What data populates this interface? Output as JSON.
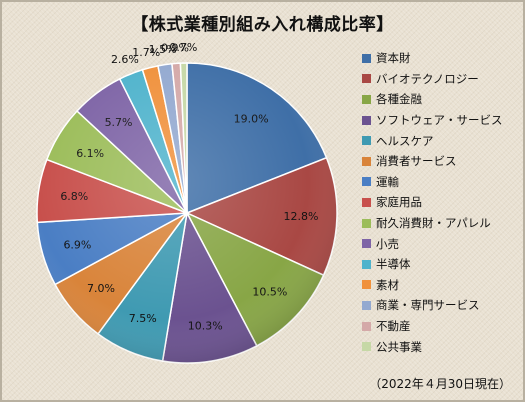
{
  "chart_data": {
    "type": "pie",
    "title": "【株式業種別組み入れ構成比率】",
    "categories": [
      "資本財",
      "バイオテクノロジー",
      "各種金融",
      "ソフトウェア・サービス",
      "ヘルスケア",
      "消費者サービス",
      "運輸",
      "家庭用品",
      "耐久消費財・アパレル",
      "小売",
      "半導体",
      "素材",
      "商業・専門サービス",
      "不動産",
      "公共事業"
    ],
    "values": [
      19.0,
      12.8,
      10.5,
      10.3,
      7.5,
      7.0,
      6.9,
      6.8,
      6.1,
      5.7,
      2.6,
      1.7,
      1.5,
      0.9,
      0.7
    ],
    "data_labels": [
      "19.0%",
      "12.8%",
      "10.5%",
      "10.3%",
      "7.5%",
      "7.0%",
      "6.9%",
      "6.8%",
      "6.1%",
      "5.7%",
      "2.6%",
      "1.7%",
      "1.5%",
      "0.9%",
      "0.7%"
    ],
    "colors": [
      "#3f6fa7",
      "#a94844",
      "#88a646",
      "#6b5290",
      "#3f9ab2",
      "#d9843a",
      "#4a7ec4",
      "#c8504c",
      "#9cbd5a",
      "#7e64a6",
      "#4fb3cc",
      "#f0913c",
      "#93a9d0",
      "#d4a9a8",
      "#c6d8a6"
    ],
    "legend_position": "right"
  },
  "footnote": "（2022年４月30日現在）"
}
